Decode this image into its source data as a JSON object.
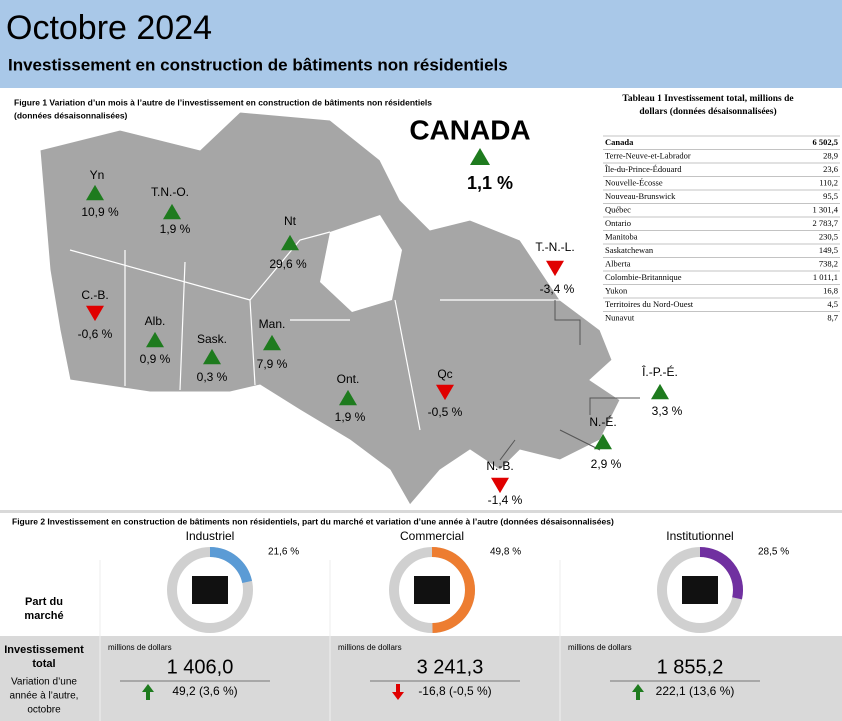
{
  "header": {
    "title": "Octobre 2024",
    "subtitle": "Investissement en construction de bâtiments non résidentiels"
  },
  "figure1": {
    "caption": "Figure 1  Variation d’un mois à l’autre de l’investissement en construction de bâtiments non résidentiels",
    "caption2": "(données désaisonnalisées)",
    "canada": {
      "label": "CANADA",
      "value": "1,1 %",
      "trend": "up"
    },
    "regions": [
      {
        "label": "Yn",
        "value": "10,9 %",
        "trend": "up"
      },
      {
        "label": "T.N.-O.",
        "value": "1,9 %",
        "trend": "up"
      },
      {
        "label": "Nt",
        "value": "29,6 %",
        "trend": "up"
      },
      {
        "label": "T.-N.-L.",
        "value": "-3,4 %",
        "trend": "down"
      },
      {
        "label": "C.-B.",
        "value": "-0,6 %",
        "trend": "down"
      },
      {
        "label": "Alb.",
        "value": "0,9 %",
        "trend": "up"
      },
      {
        "label": "Sask.",
        "value": "0,3 %",
        "trend": "up"
      },
      {
        "label": "Man.",
        "value": "7,9 %",
        "trend": "up"
      },
      {
        "label": "Ont.",
        "value": "1,9 %",
        "trend": "up"
      },
      {
        "label": "Qc",
        "value": "-0,5 %",
        "trend": "down"
      },
      {
        "label": "Î.-P.-É.",
        "value": "3,3 %",
        "trend": "up"
      },
      {
        "label": "N.-É.",
        "value": "2,9 %",
        "trend": "up"
      },
      {
        "label": "N.-B.",
        "value": "-1,4 %",
        "trend": "down"
      }
    ]
  },
  "table": {
    "title": [
      "Tableau 1 Investissement total, millions de",
      "dollars (données désaisonnalisées)"
    ],
    "rows": [
      [
        "Canada",
        "6 502,5"
      ],
      [
        "Terre-Neuve-et-Labrador",
        "28,9"
      ],
      [
        "Île-du-Prince-Édouard",
        "23,6"
      ],
      [
        "Nouvelle-Écosse",
        "110,2"
      ],
      [
        "Nouveau-Brunswick",
        "95,5"
      ],
      [
        "Québec",
        "1 301,4"
      ],
      [
        "Ontario",
        "2 783,7"
      ],
      [
        "Manitoba",
        "230,5"
      ],
      [
        "Saskatchewan",
        "149,5"
      ],
      [
        "Alberta",
        "738,2"
      ],
      [
        "Colombie-Britannique",
        "1 011,1"
      ],
      [
        "Yukon",
        "16,8"
      ],
      [
        "Territoires du Nord-Ouest",
        "4,5"
      ],
      [
        "Nunavut",
        "8,7"
      ]
    ]
  },
  "figure2": {
    "caption": "Figure 2  Investissement en construction de bâtiments non résidentiels, part du marché et variation d’une année à l’autre (données désaisonnalisées)",
    "row_labels": [
      [
        "Part du",
        "marché"
      ],
      [
        "Investissement",
        "total"
      ],
      [
        "Variation d’une",
        "année à l’autre,",
        "octobre"
      ]
    ],
    "unit": "millions de dollars",
    "sectors": [
      {
        "name": "Industriel",
        "share": 21.6,
        "share_label": "21,6 %",
        "total": "1 406,0",
        "change": "49,2 (3,6 %)",
        "trend": "up",
        "color": "#5b9bd5"
      },
      {
        "name": "Commercial",
        "share": 49.8,
        "share_label": "49,8 %",
        "total": "3 241,3",
        "change": "-16,8 (-0,5 %)",
        "trend": "down",
        "color": "#ed7d31"
      },
      {
        "name": "Institutionnel",
        "share": 28.5,
        "share_label": "28,5 %",
        "total": "1 855,2",
        "change": "222,1 (13,6 %)",
        "trend": "up",
        "color": "#7030a0"
      }
    ]
  }
}
